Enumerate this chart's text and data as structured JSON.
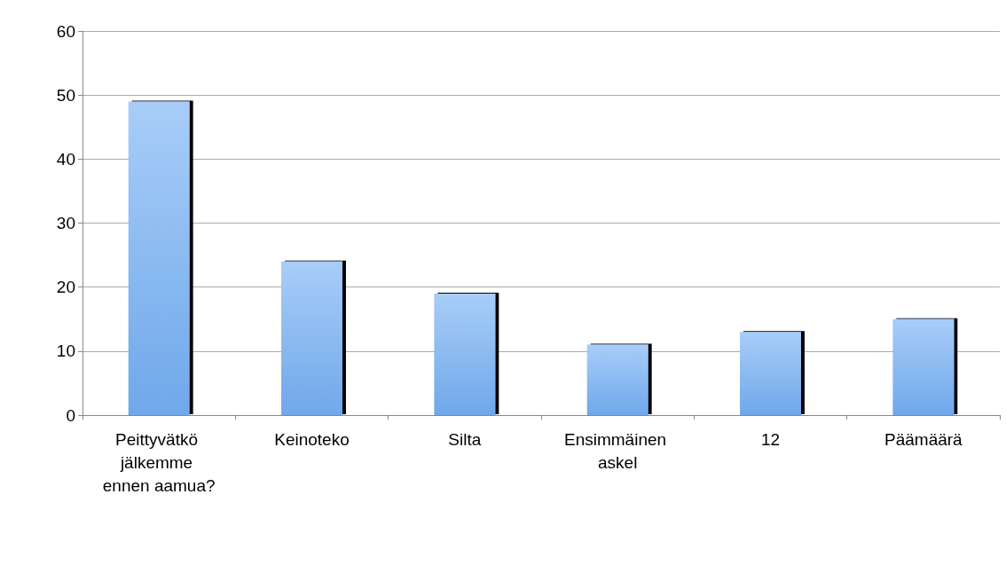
{
  "chart_data": {
    "type": "bar",
    "categories": [
      "Peittyvätkö jälkemme ennen aamua?",
      "Keinoteko",
      "Silta",
      "Ensimmäinen askel",
      "12",
      "Päämäärä"
    ],
    "values": [
      49,
      24,
      19,
      11,
      13,
      15
    ],
    "color": "#6fa8ea",
    "ylim": [
      0,
      60
    ],
    "yticks": [
      0,
      10,
      20,
      30,
      40,
      50,
      60
    ],
    "grid": "y"
  }
}
